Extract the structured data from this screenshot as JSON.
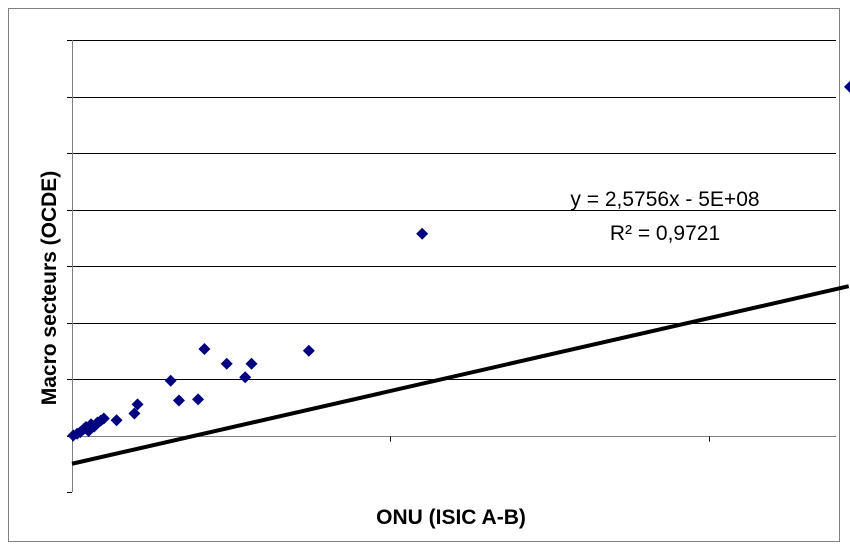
{
  "chart_data": {
    "type": "scatter",
    "title": "",
    "xlabel": "ONU (ISIC A-B)",
    "ylabel": "Macro secteurs (OCDE)",
    "xlim": [
      0,
      1200000000
    ],
    "ylim": [
      -1000000000,
      7000000000
    ],
    "x_tick_step": 500000000,
    "y_tick_step": 1000000000,
    "grid": "horizontal",
    "legend": "none",
    "marker_color": "#000080",
    "trendline_color": "#000000",
    "series": [
      {
        "points": [
          {
            "x": 2000000,
            "y": 0
          },
          {
            "x": 8000000,
            "y": 30000000
          },
          {
            "x": 13000000,
            "y": 60000000
          },
          {
            "x": 18000000,
            "y": 110000000
          },
          {
            "x": 22000000,
            "y": 150000000
          },
          {
            "x": 26000000,
            "y": 80000000
          },
          {
            "x": 30000000,
            "y": 200000000
          },
          {
            "x": 35000000,
            "y": 160000000
          },
          {
            "x": 40000000,
            "y": 230000000
          },
          {
            "x": 45000000,
            "y": 260000000
          },
          {
            "x": 50000000,
            "y": 300000000
          },
          {
            "x": 70000000,
            "y": 270000000
          },
          {
            "x": 98000000,
            "y": 390000000
          },
          {
            "x": 103000000,
            "y": 550000000
          },
          {
            "x": 155000000,
            "y": 970000000
          },
          {
            "x": 168000000,
            "y": 620000000
          },
          {
            "x": 198000000,
            "y": 640000000
          },
          {
            "x": 208000000,
            "y": 1530000000
          },
          {
            "x": 243000000,
            "y": 1270000000
          },
          {
            "x": 272000000,
            "y": 1030000000
          },
          {
            "x": 282000000,
            "y": 1270000000
          },
          {
            "x": 372000000,
            "y": 1500000000
          },
          {
            "x": 550000000,
            "y": 3570000000
          },
          {
            "x": 1222000000,
            "y": 6170000000
          }
        ]
      }
    ],
    "trendline": {
      "slope": 2.5756,
      "intercept": -500000000,
      "x_range": [
        0,
        1220000000
      ],
      "equation": "y = 2,5756x - 5E+08",
      "r_squared": "R² = 0,9721"
    }
  }
}
